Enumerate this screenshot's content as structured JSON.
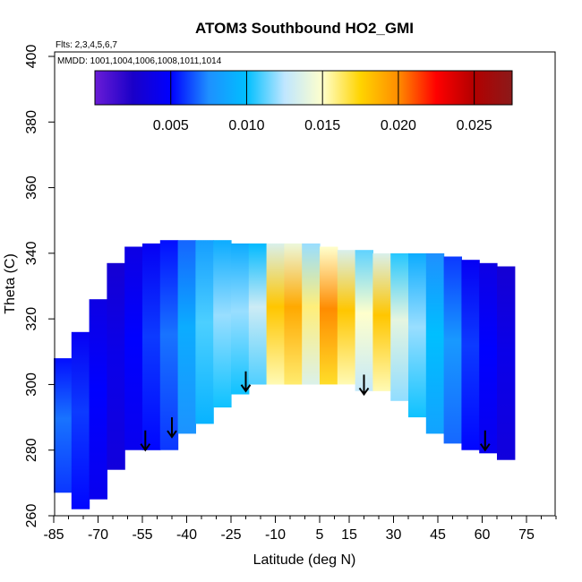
{
  "chart_data": {
    "type": "heatmap",
    "title": "ATOM3 Southbound HO2_GMI",
    "subtitle_flights": "Flts: 2,3,4,5,6,7",
    "subtitle_dates": "MMDD: 1001,1004,1006,1008,1011,1014",
    "xlabel": "Latitude (deg N)",
    "ylabel": "Theta (C)",
    "xlim": [
      -85,
      85
    ],
    "ylim": [
      260,
      400
    ],
    "x_ticks": [
      -85,
      -70,
      -55,
      -40,
      -25,
      -10,
      5,
      15,
      30,
      45,
      60,
      75
    ],
    "y_ticks": [
      260,
      280,
      300,
      320,
      340,
      360,
      380,
      400
    ],
    "colorbar": {
      "ticks": [
        0.005,
        0.01,
        0.015,
        0.02,
        0.025
      ],
      "tick_labels": [
        "0.005",
        "0.010",
        "0.015",
        "0.020",
        "0.025"
      ],
      "range": [
        0.0,
        0.0275
      ],
      "colors": [
        "#6a1cd6",
        "#1a00c8",
        "#0000ff",
        "#1e90ff",
        "#00bfff",
        "#bfe6ff",
        "#ffffcc",
        "#ffd400",
        "#ff8c00",
        "#ff0000",
        "#b20000",
        "#8b1a1a"
      ]
    },
    "arrows": [
      {
        "lat": -54,
        "theta": 280
      },
      {
        "lat": -45,
        "theta": 284
      },
      {
        "lat": -20,
        "theta": 298
      },
      {
        "lat": 20,
        "theta": 297
      },
      {
        "lat": 61,
        "theta": 280
      }
    ],
    "columns": [
      {
        "lat": -82,
        "bottom": 267,
        "top": 308,
        "value": 0.007
      },
      {
        "lat": -76,
        "bottom": 262,
        "top": 316,
        "value": 0.006
      },
      {
        "lat": -70,
        "bottom": 265,
        "top": 326,
        "value": 0.005
      },
      {
        "lat": -64,
        "bottom": 274,
        "top": 337,
        "value": 0.004
      },
      {
        "lat": -58,
        "bottom": 280,
        "top": 342,
        "value": 0.005
      },
      {
        "lat": -52,
        "bottom": 280,
        "top": 343,
        "value": 0.006
      },
      {
        "lat": -46,
        "bottom": 280,
        "top": 344,
        "value": 0.007
      },
      {
        "lat": -40,
        "bottom": 285,
        "top": 344,
        "value": 0.009
      },
      {
        "lat": -34,
        "bottom": 288,
        "top": 344,
        "value": 0.011
      },
      {
        "lat": -28,
        "bottom": 293,
        "top": 344,
        "value": 0.012
      },
      {
        "lat": -22,
        "bottom": 297,
        "top": 343,
        "value": 0.012
      },
      {
        "lat": -16,
        "bottom": 300,
        "top": 343,
        "value": 0.013
      },
      {
        "lat": -10,
        "bottom": 300,
        "top": 343,
        "value": 0.018
      },
      {
        "lat": -4,
        "bottom": 300,
        "top": 343,
        "value": 0.019
      },
      {
        "lat": 2,
        "bottom": 300,
        "top": 343,
        "value": 0.016
      },
      {
        "lat": 8,
        "bottom": 300,
        "top": 342,
        "value": 0.02
      },
      {
        "lat": 14,
        "bottom": 300,
        "top": 341,
        "value": 0.018
      },
      {
        "lat": 20,
        "bottom": 298,
        "top": 341,
        "value": 0.015
      },
      {
        "lat": 26,
        "bottom": 298,
        "top": 340,
        "value": 0.018
      },
      {
        "lat": 32,
        "bottom": 295,
        "top": 340,
        "value": 0.014
      },
      {
        "lat": 38,
        "bottom": 290,
        "top": 340,
        "value": 0.012
      },
      {
        "lat": 44,
        "bottom": 285,
        "top": 340,
        "value": 0.01
      },
      {
        "lat": 50,
        "bottom": 282,
        "top": 339,
        "value": 0.008
      },
      {
        "lat": 56,
        "bottom": 280,
        "top": 338,
        "value": 0.006
      },
      {
        "lat": 62,
        "bottom": 279,
        "top": 337,
        "value": 0.005
      },
      {
        "lat": 68,
        "bottom": 277,
        "top": 336,
        "value": 0.004
      }
    ]
  }
}
